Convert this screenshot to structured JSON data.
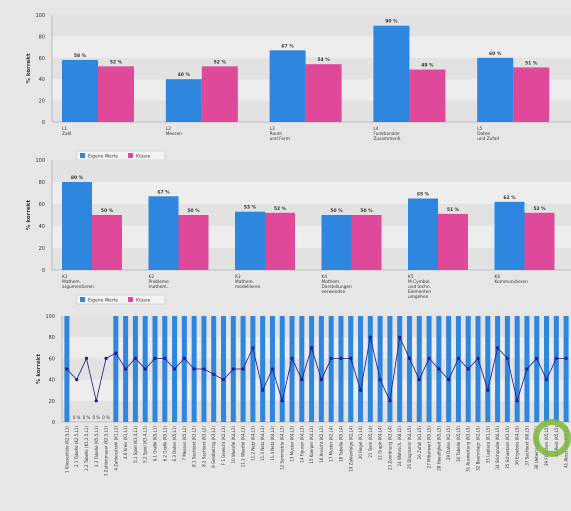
{
  "colors": {
    "own": "#2e86de",
    "class": "#e0489a",
    "line": "#1a1a8c",
    "circle": "#7bb83a"
  },
  "chart_data": [
    {
      "type": "bar",
      "ylabel": "% korrekt",
      "ylim": [
        0,
        100
      ],
      "yticks": [
        "0",
        "20",
        "40",
        "60",
        "80",
        "100"
      ],
      "categories": [
        [
          "L1",
          "Zahl"
        ],
        [
          "L2",
          "Messen"
        ],
        [
          "L3",
          "Raum",
          "und Form"
        ],
        [
          "L4",
          "Funktionaler",
          "Zusammenh."
        ],
        [
          "L5",
          "Daten",
          "und Zufall"
        ]
      ],
      "series": [
        {
          "name": "Eigene Werte",
          "values": [
            58,
            40,
            67,
            90,
            60
          ],
          "labels": [
            "58 %",
            "40 %",
            "67 %",
            "90 %",
            "60 %"
          ]
        },
        {
          "name": "Klasse",
          "values": [
            52,
            52,
            54,
            49,
            51
          ],
          "labels": [
            "52 %",
            "52 %",
            "54 %",
            "49 %",
            "51 %"
          ]
        }
      ],
      "legend": [
        "Eigene Werte",
        "Klasse"
      ]
    },
    {
      "type": "bar",
      "ylabel": "% korrekt",
      "ylim": [
        0,
        100
      ],
      "yticks": [
        "0",
        "20",
        "40",
        "60",
        "80",
        "100"
      ],
      "categories": [
        [
          "K1",
          "Mathem.",
          "argumentieren"
        ],
        [
          "K2",
          "Probleme",
          "mathem."
        ],
        [
          "K3",
          "Mathem.",
          "modellieren"
        ],
        [
          "K4",
          "Mathem.",
          "Darstellungen",
          "verwenden"
        ],
        [
          "K5",
          "M.Cymbol.",
          "und techn.",
          "Elementen",
          "umgehen"
        ],
        [
          "K6",
          "Kommunizieren"
        ]
      ],
      "series": [
        {
          "name": "Eigene Werte",
          "values": [
            80,
            67,
            53,
            50,
            65,
            62
          ],
          "labels": [
            "80 %",
            "67 %",
            "53 %",
            "50 %",
            "65 %",
            "62 %"
          ]
        },
        {
          "name": "Klasse",
          "values": [
            50,
            50,
            52,
            50,
            51,
            52
          ],
          "labels": [
            "50 %",
            "50 %",
            "52 %",
            "50 %",
            "51 %",
            "52 %"
          ]
        }
      ],
      "legend": [
        "Eigene Werte",
        "Klasse"
      ]
    },
    {
      "type": "bar",
      "ylabel": "% korrekt",
      "ylim": [
        0,
        100
      ],
      "yticks": [
        "0",
        "20",
        "40",
        "60",
        "80",
        "100"
      ],
      "categories": [
        "1 Klassenliste (K2,5,L1)",
        "2 1 Tabelle (K2,5,L1)",
        "2.2 Tabelle (K1,2,5,L1)",
        "2.3 Tabelle (K5,5,L1)",
        "3 Zahlenmauer (K2,5,L1)",
        "4 Zahlenstrahl (K1,L1)",
        "4.6 Kreis (K1,L1)",
        "5.1 Spiel (K3,4,L1)",
        "5.2 Spiel (K3,4,L1)",
        "6.1 Grafik (K5,L1)",
        "6.2 Grafik (K5,L1)",
        "6.3 Daten (K5,L1)",
        "7 Messen (K5,L2)",
        "8.1 Sachtext (K3,L2)",
        "8.2 Sachtext (K3,L2)",
        "9 Geldbetrag (K3,L2)",
        "F 1 Gewicht (K2,L3)",
        "10 Wuerfel (K4,L3)",
        "11.1 Wuerfel (K4,L3)",
        "11.2 Netz (K4,L3)",
        "11.3 Netz (K4,L3)",
        "11.4 Netz (K4,L3)",
        "12 Symmetrie (K4,L3)",
        "13 Muster (K4,L3)",
        "14 Figuren (K4,L3)",
        "15 Koerper (K4,L3)",
        "16 Ansicht (K2,L3)",
        "17 Muster (K2,L4)",
        "18 Tabelle (K5,L4)",
        "19 Zahlenfolge (K2,L4)",
        "20 Regel (K1,L4)",
        "21 Term (K5,L4)",
        "22 Graph (K4,L4)",
        "23 Zuordnung (K3,L4)",
        "24 Wahrsch. (K6,L5)",
        "25 Diagramm (K4,L5)",
        "26 Zufall (K1,L5)",
        "27 Mittelwert (K5,L5)",
        "28 Haeufigkeit (K5,L5)",
        "29 Daten (K2,L5)",
        "30 Tabelle (K5,L5)",
        "31 Auswertung (K3,L5)",
        "32 Baumdiagr. (K2,L5)",
        "33 Laplace (K1,L5)",
        "34 Stichprobe (K6,L5)",
        "35 Schaetzen (K3,L5)",
        "36 Ergebnis (K4,L5)",
        "37 Sachtext (K6,L5)",
        "38 Uebersicht (K1,L5)",
        "39 Flaechen (K5,L5)",
        "40 Rest (K5,L5)",
        "41 Abschluss (K6,L5)"
      ],
      "series": [
        {
          "name": "Eigene Werte",
          "values": [
            100,
            0,
            0,
            0,
            0,
            100,
            100,
            100,
            100,
            100,
            100,
            100,
            100,
            100,
            100,
            100,
            100,
            100,
            100,
            100,
            100,
            100,
            100,
            100,
            100,
            100,
            100,
            100,
            100,
            100,
            100,
            100,
            100,
            100,
            100,
            100,
            100,
            100,
            100,
            100,
            100,
            100,
            100,
            100,
            100,
            100,
            100,
            100,
            100,
            100,
            100,
            100
          ],
          "labels": [
            "",
            "0 %",
            "0 %",
            "0 %",
            "0 %",
            "",
            "",
            "",
            "",
            "",
            "",
            "",
            "",
            "",
            "",
            "",
            "",
            "",
            "",
            "",
            "",
            "",
            "",
            "",
            "",
            "",
            "",
            "",
            "",
            "",
            "",
            "",
            "",
            "",
            "",
            "",
            "",
            "",
            "",
            "",
            "",
            "",
            "",
            "",
            "",
            "",
            "",
            "",
            "",
            "",
            "",
            ""
          ]
        },
        {
          "name": "Klasse",
          "values": [
            50,
            40,
            60,
            20,
            60,
            65,
            50,
            60,
            50,
            60,
            60,
            50,
            60,
            50,
            50,
            45,
            40,
            50,
            50,
            70,
            30,
            50,
            20,
            60,
            40,
            70,
            40,
            60,
            60,
            60,
            30,
            80,
            40,
            20,
            80,
            60,
            40,
            60,
            50,
            40,
            60,
            50,
            60,
            30,
            70,
            60,
            20,
            50,
            60,
            40,
            60,
            60
          ]
        }
      ],
      "zero_labels_mid": [
        "0 %",
        "0 %",
        "0 %",
        "0 %",
        "0 %",
        "0 %",
        "0 %",
        "0 %"
      ]
    }
  ]
}
